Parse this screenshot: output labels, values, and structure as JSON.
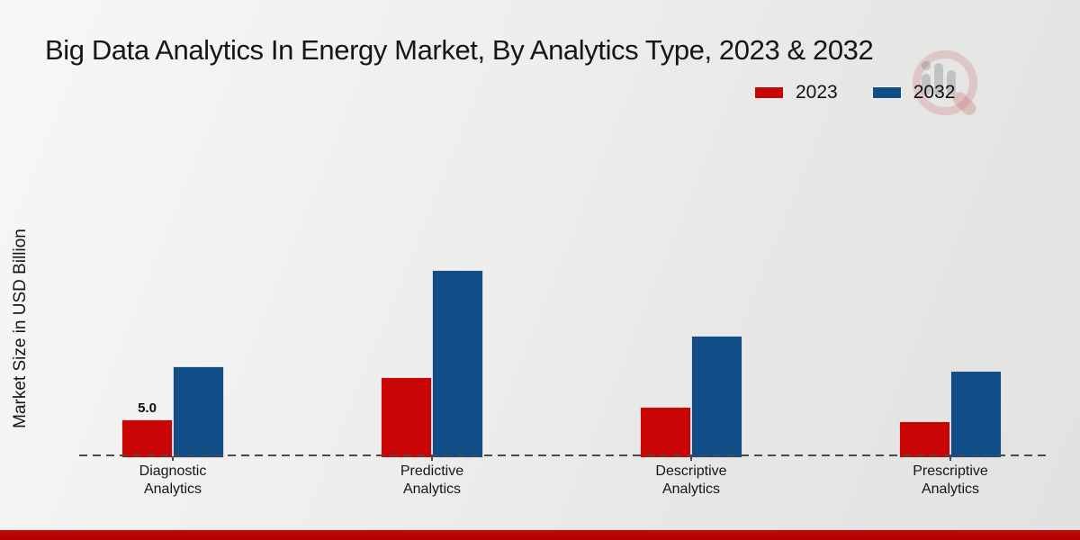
{
  "page": {
    "background_top": "#f7f7f6",
    "background_bottom": "#e2e2e1",
    "footer_bar_color": "#c20505"
  },
  "watermark": {
    "name": "magnifier-bar-chart-logo",
    "ring_color": "rgba(198,90,90,0.22)",
    "bars_color": "rgba(128,128,128,0.35)"
  },
  "chart_data": {
    "type": "bar",
    "title": "Big Data Analytics In Energy Market, By Analytics Type, 2023 & 2032",
    "xlabel": "",
    "ylabel": "Market Size in USD Billion",
    "categories": [
      "Diagnostic Analytics",
      "Predictive Analytics",
      "Descriptive Analytics",
      "Prescriptive Analytics"
    ],
    "series": [
      {
        "name": "2023",
        "color": "#c80404",
        "values": [
          5.0,
          10.5,
          6.6,
          4.8
        ]
      },
      {
        "name": "2032",
        "color": "#114e87",
        "values": [
          11.9,
          24.3,
          15.8,
          11.3
        ]
      }
    ],
    "annotations": [
      {
        "series": "2023",
        "category": "Diagnostic Analytics",
        "text": "5.0"
      }
    ],
    "ylim": [
      0,
      25
    ],
    "grid": false,
    "y_axis_ticks_visible": false,
    "baseline_style": "dashed",
    "legend_position": "top-right"
  }
}
